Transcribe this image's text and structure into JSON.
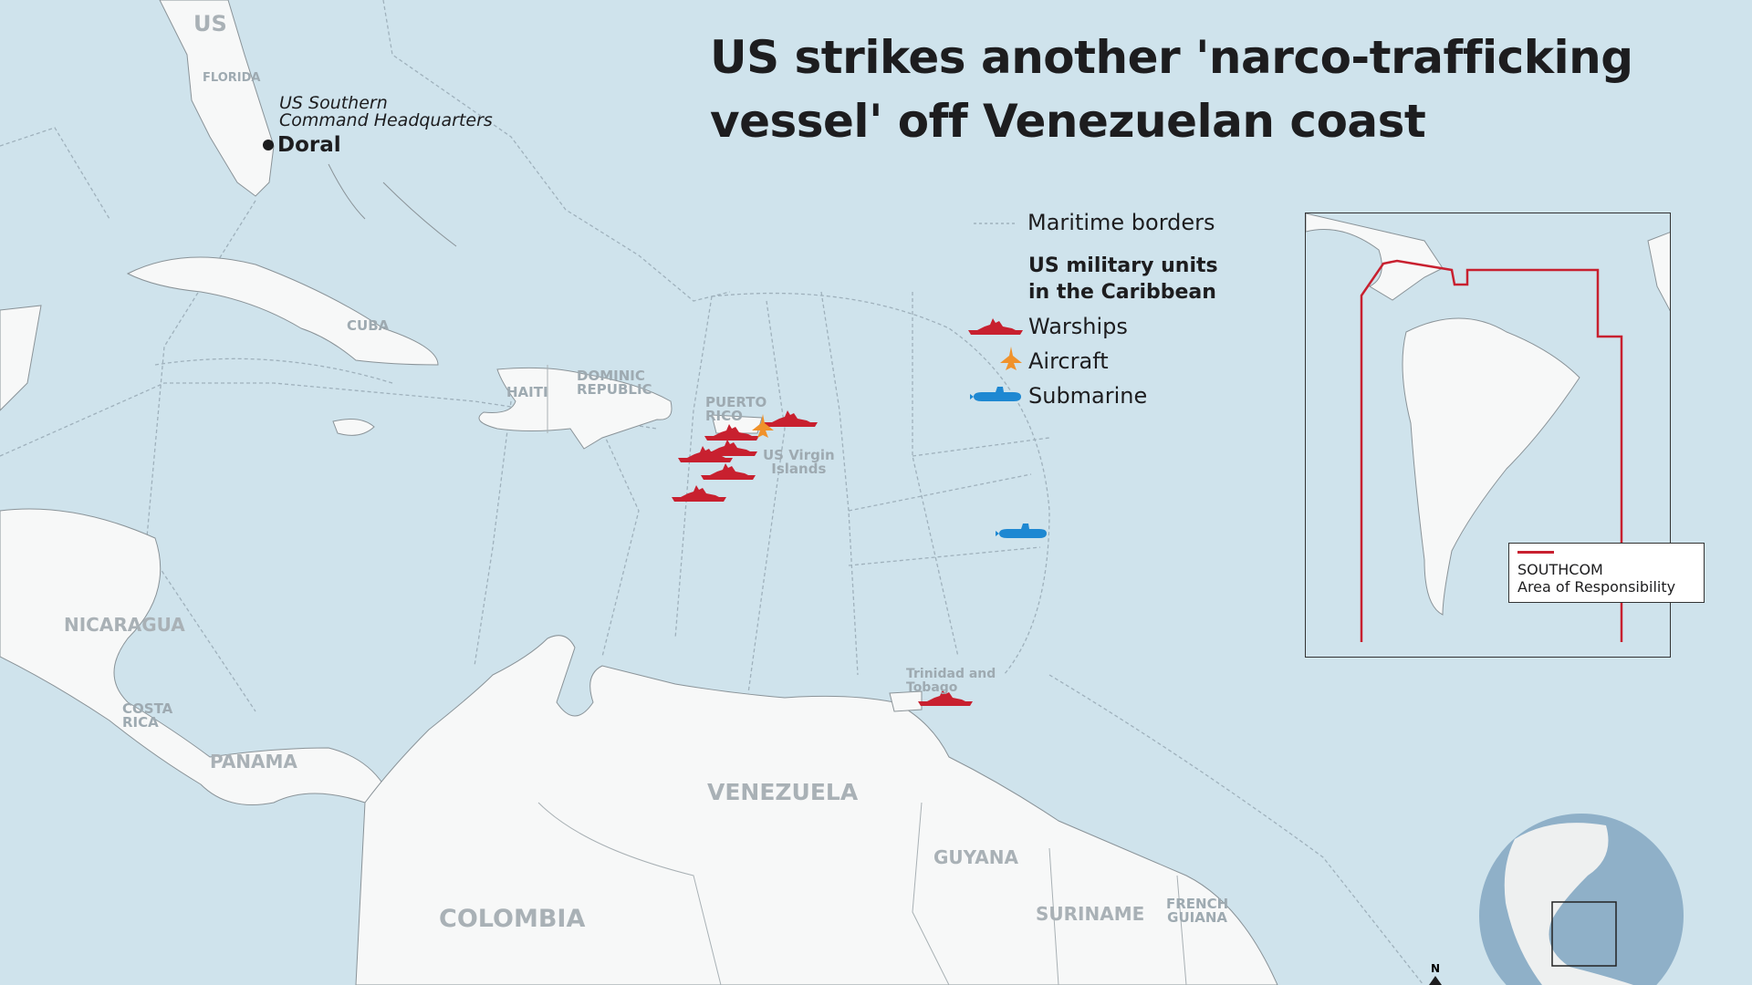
{
  "title": "US strikes another 'narco-trafficking vessel' off Venezuelan coast",
  "title_lines": [
    "US strikes another 'narco-trafficking",
    "vessel' off Venezuelan coast"
  ],
  "legend": {
    "maritime_borders": "Maritime borders",
    "heading_lines": [
      "US military units",
      "in the Caribbean"
    ],
    "warships": "Warships",
    "aircraft": "Aircraft",
    "submarine": "Submarine"
  },
  "headquarters": {
    "lines": [
      "US Southern",
      "Command Headquarters"
    ],
    "city": "Doral"
  },
  "labels": {
    "us": "US",
    "florida": "FLORIDA",
    "cuba": "CUBA",
    "haiti": "HAITI",
    "dominican_republic": [
      "DOMINIC",
      "REPUBLIC"
    ],
    "puerto_rico": [
      "PUERTO",
      "RICO"
    ],
    "us_virgin_islands": [
      "US Virgin",
      "Islands"
    ],
    "nicaragua": "NICARAGUA",
    "costa_rica": [
      "COSTA",
      "RICA"
    ],
    "panama": "PANAMA",
    "venezuela": "VENEZUELA",
    "colombia": "COLOMBIA",
    "guyana": "GUYANA",
    "suriname": "SURINAME",
    "french_guiana": [
      "FRENCH",
      "GUIANA"
    ],
    "trinidad": [
      "Trinidad and",
      "Tobago"
    ]
  },
  "inset": {
    "legend_lines": [
      "SOUTHCOM",
      "Area of Responsibility"
    ]
  },
  "north_arrow": "N",
  "colors": {
    "sea": "#cfe3ec",
    "land": "#f7f8f8",
    "warship": "#c8202f",
    "aircraft": "#f0922b",
    "submarine": "#1e88d2",
    "aor": "#c8202f",
    "globe_sea": "#8fb0c8"
  },
  "units": {
    "warships": 7,
    "aircraft": 1,
    "submarines": 1
  }
}
